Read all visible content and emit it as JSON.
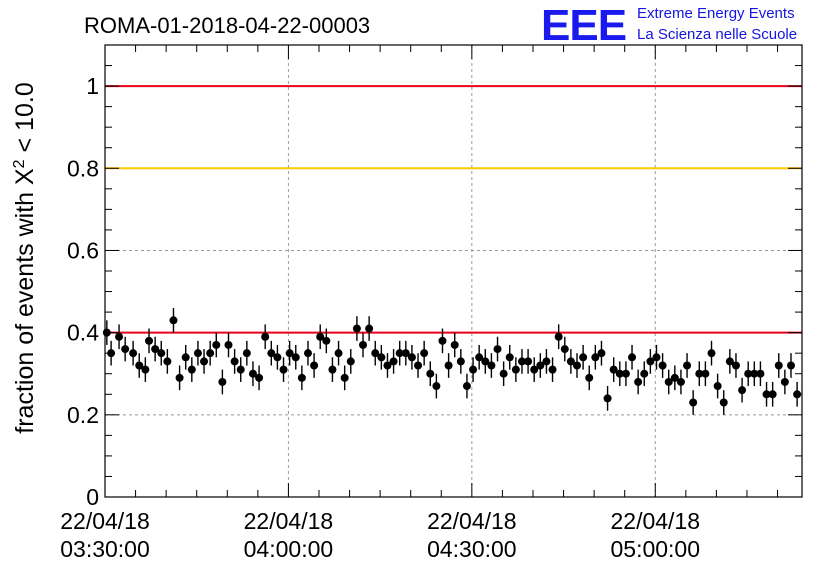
{
  "header": {
    "title": "ROMA-01-2018-04-22-00003",
    "logo_text": "EEE",
    "brand_line1": "Extreme Energy Events",
    "brand_line2": "La Scienza nelle Scuole"
  },
  "colors": {
    "ref_red": "#e8001c",
    "ref_yellow": "#ffc800",
    "brand_blue": "#1a1aee",
    "marker": "#000000"
  },
  "chart_data": {
    "type": "scatter",
    "title": "ROMA-01-2018-04-22-00003",
    "ylabel_prefix": "fraction of events with ",
    "ylabel_symbol": "X",
    "ylabel_exponent": "2",
    "ylabel_suffix": " < 10.0",
    "xlabel": "",
    "x_unit": "minutes after 2018-04-22 03:30:00",
    "xlim": [
      0,
      114
    ],
    "ylim": [
      0,
      1.1
    ],
    "grid": true,
    "legend": "none",
    "y_ticks": [
      {
        "value": 0,
        "label": "0"
      },
      {
        "value": 0.2,
        "label": "0.2"
      },
      {
        "value": 0.4,
        "label": "0.4"
      },
      {
        "value": 0.6,
        "label": "0.6"
      },
      {
        "value": 0.8,
        "label": "0.8"
      },
      {
        "value": 1,
        "label": "1"
      }
    ],
    "x_ticks": [
      {
        "value": 0,
        "date": "22/04/18",
        "time": "03:30:00"
      },
      {
        "value": 30,
        "date": "22/04/18",
        "time": "04:00:00"
      },
      {
        "value": 60,
        "date": "22/04/18",
        "time": "04:30:00"
      },
      {
        "value": 90,
        "date": "22/04/18",
        "time": "05:00:00"
      }
    ],
    "reference_lines": [
      {
        "y": 1.0,
        "color": "#e8001c"
      },
      {
        "y": 0.8,
        "color": "#ffc800"
      },
      {
        "y": 0.4,
        "color": "#e8001c"
      }
    ],
    "series": [
      {
        "x": [
          0.3,
          1.0,
          2.3,
          3.3,
          4.6,
          5.6,
          6.6,
          7.2,
          8.2,
          9.2,
          10.2,
          11.2,
          12.2,
          13.2,
          14.2,
          15.2,
          16.2,
          17.2,
          18.2,
          19.2,
          20.2,
          21.2,
          22.2,
          23.2,
          24.2,
          25.2,
          26.2,
          27.2,
          28.2,
          29.2,
          30.2,
          31.2,
          32.2,
          33.2,
          34.2,
          35.2,
          36.2,
          37.2,
          38.2,
          39.2,
          40.2,
          41.2,
          42.2,
          43.2,
          44.2,
          45.2,
          46.2,
          47.2,
          48.2,
          49.2,
          50.2,
          51.2,
          52.2,
          53.2,
          54.2,
          55.2,
          56.2,
          57.2,
          58.2,
          59.2,
          60.2,
          61.2,
          62.2,
          63.2,
          64.2,
          65.2,
          66.2,
          67.2,
          68.2,
          69.2,
          70.2,
          71.2,
          72.2,
          73.2,
          74.2,
          75.2,
          76.2,
          77.2,
          78.2,
          79.2,
          80.2,
          81.2,
          82.2,
          83.2,
          84.2,
          85.2,
          86.2,
          87.2,
          88.2,
          89.2,
          90.2,
          91.2,
          92.2,
          93.2,
          94.2,
          95.2,
          96.2,
          97.2,
          98.2,
          99.2,
          100.2,
          101.2,
          102.2,
          103.2,
          104.2,
          105.2,
          106.2,
          107.2,
          108.2,
          109.2,
          110.2,
          111.2,
          112.2,
          113.2
        ],
        "y": [
          0.4,
          0.35,
          0.39,
          0.36,
          0.35,
          0.32,
          0.31,
          0.38,
          0.36,
          0.35,
          0.33,
          0.43,
          0.29,
          0.34,
          0.31,
          0.35,
          0.33,
          0.35,
          0.37,
          0.28,
          0.37,
          0.33,
          0.31,
          0.35,
          0.3,
          0.29,
          0.39,
          0.35,
          0.34,
          0.31,
          0.35,
          0.34,
          0.29,
          0.35,
          0.32,
          0.39,
          0.38,
          0.31,
          0.35,
          0.29,
          0.33,
          0.41,
          0.37,
          0.41,
          0.35,
          0.34,
          0.32,
          0.33,
          0.35,
          0.35,
          0.34,
          0.32,
          0.35,
          0.3,
          0.27,
          0.38,
          0.32,
          0.37,
          0.33,
          0.27,
          0.31,
          0.34,
          0.33,
          0.32,
          0.36,
          0.3,
          0.34,
          0.31,
          0.33,
          0.33,
          0.31,
          0.32,
          0.33,
          0.31,
          0.39,
          0.36,
          0.33,
          0.32,
          0.34,
          0.29,
          0.34,
          0.35,
          0.24,
          0.31,
          0.3,
          0.3,
          0.34,
          0.28,
          0.3,
          0.33,
          0.34,
          0.32,
          0.28,
          0.29,
          0.28,
          0.32,
          0.23,
          0.3,
          0.3,
          0.35,
          0.27,
          0.23,
          0.33,
          0.32,
          0.26,
          0.3,
          0.3,
          0.3,
          0.25,
          0.25,
          0.32,
          0.28,
          0.32,
          0.25
        ],
        "err": 0.03
      }
    ]
  }
}
